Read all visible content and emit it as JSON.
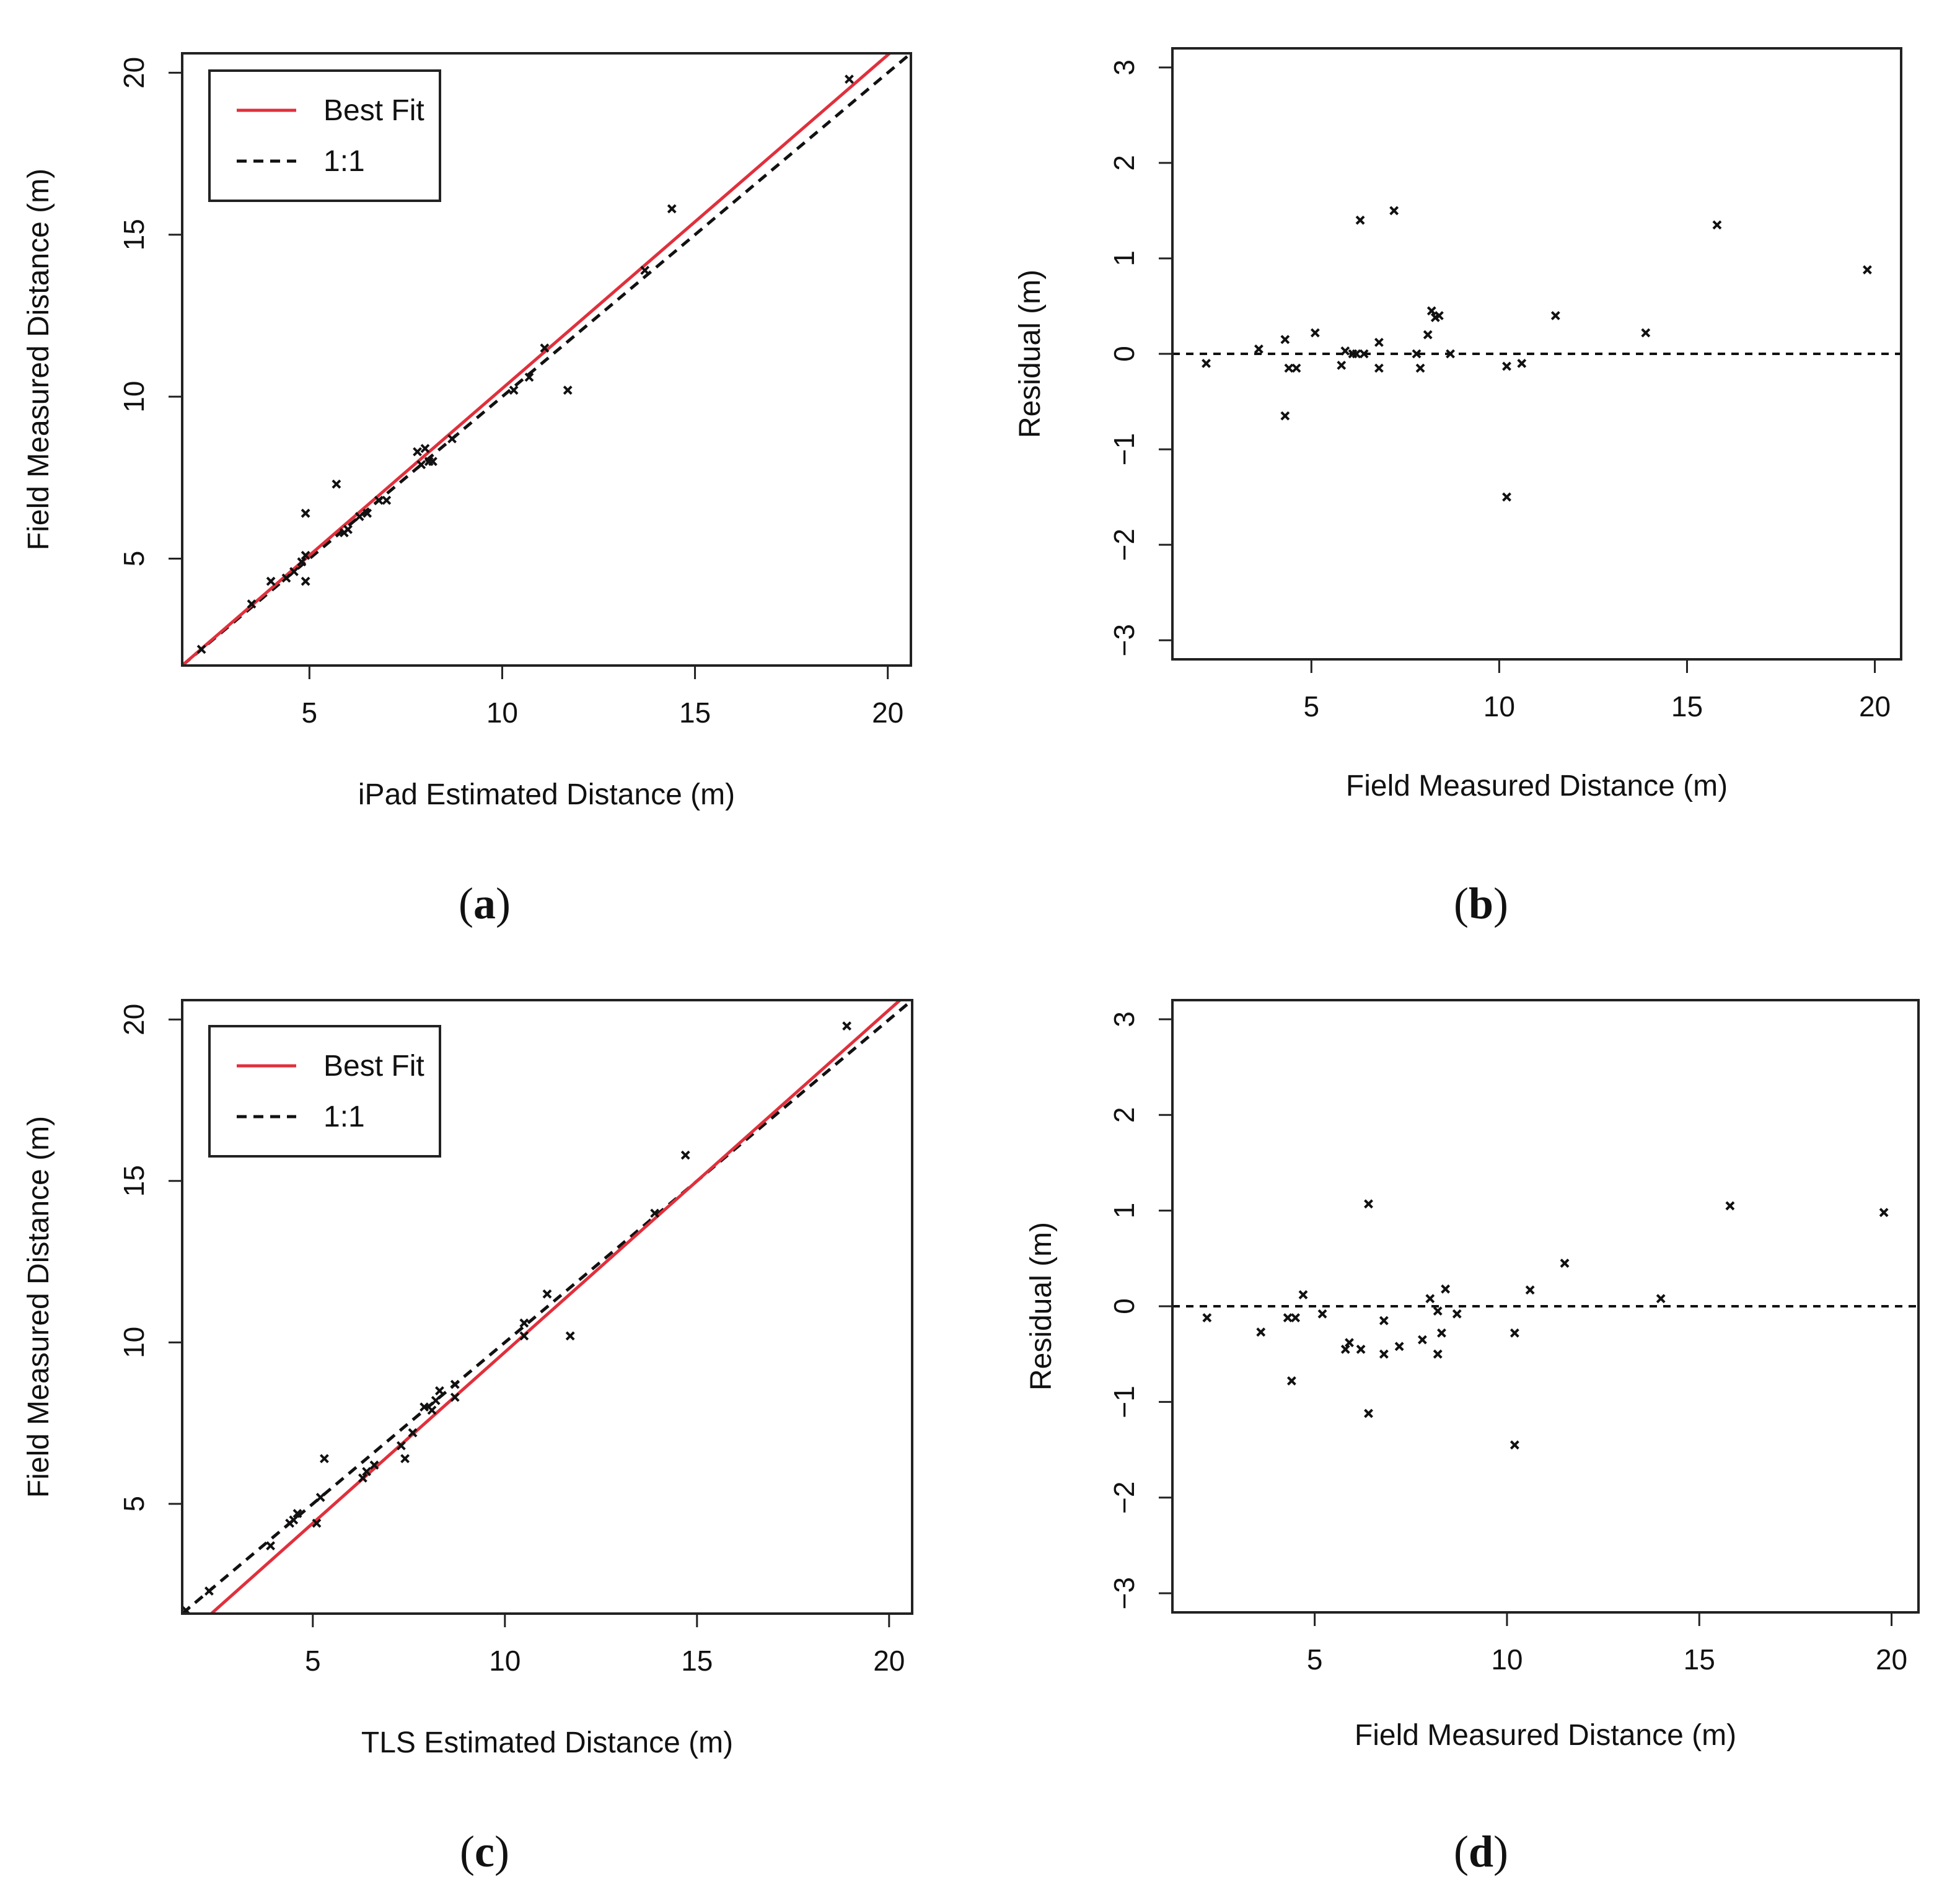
{
  "chart_data": [
    {
      "type": "scatter",
      "panel_label": "(a)",
      "label_letter": "a",
      "xlabel": "iPad Estimated Distance (m)",
      "ylabel": "Field Measured Distance (m)",
      "xlim": [
        1.7,
        20.6
      ],
      "ylim": [
        1.7,
        20.6
      ],
      "xticks": [
        5,
        10,
        15,
        20
      ],
      "yticks": [
        5,
        10,
        15,
        20
      ],
      "legend": {
        "position": "top-left",
        "entries": [
          {
            "label": "Best Fit",
            "style": "solid",
            "color": "#e0303c"
          },
          {
            "label": "1:1",
            "style": "dashed",
            "color": "#111111"
          }
        ]
      },
      "best_fit": {
        "slope": 1.03,
        "intercept": -0.05
      },
      "reference_line": {
        "slope": 1,
        "intercept": 0
      },
      "points": [
        [
          2.2,
          2.2
        ],
        [
          3.5,
          3.6
        ],
        [
          4.0,
          4.3
        ],
        [
          4.4,
          4.4
        ],
        [
          4.6,
          4.6
        ],
        [
          4.9,
          4.3
        ],
        [
          4.8,
          4.9
        ],
        [
          4.9,
          5.1
        ],
        [
          4.9,
          6.4
        ],
        [
          5.7,
          7.3
        ],
        [
          5.9,
          5.8
        ],
        [
          6.0,
          5.9
        ],
        [
          6.3,
          6.3
        ],
        [
          6.5,
          6.4
        ],
        [
          6.8,
          6.8
        ],
        [
          7.0,
          6.8
        ],
        [
          7.8,
          8.3
        ],
        [
          7.9,
          7.9
        ],
        [
          8.0,
          8.4
        ],
        [
          8.1,
          8.0
        ],
        [
          8.2,
          8.0
        ],
        [
          8.7,
          8.7
        ],
        [
          10.3,
          10.2
        ],
        [
          10.7,
          10.6
        ],
        [
          11.1,
          11.5
        ],
        [
          11.7,
          10.2
        ],
        [
          13.7,
          13.9
        ],
        [
          14.4,
          15.8
        ],
        [
          19.0,
          19.8
        ]
      ]
    },
    {
      "type": "scatter",
      "panel_label": "(b)",
      "label_letter": "b",
      "xlabel": "Field Measured Distance (m)",
      "ylabel": "Residual (m)",
      "xlim": [
        1.3,
        20.7
      ],
      "ylim": [
        -3.2,
        3.2
      ],
      "xticks": [
        5,
        10,
        15,
        20
      ],
      "yticks": [
        -3,
        -2,
        -1,
        0,
        1,
        2,
        3
      ],
      "zero_line": 0,
      "points": [
        [
          2.2,
          -0.1
        ],
        [
          3.6,
          0.05
        ],
        [
          4.3,
          0.15
        ],
        [
          4.3,
          -0.65
        ],
        [
          4.4,
          -0.15
        ],
        [
          4.6,
          -0.15
        ],
        [
          5.1,
          0.22
        ],
        [
          5.8,
          -0.12
        ],
        [
          5.9,
          0.03
        ],
        [
          6.1,
          0.0
        ],
        [
          6.2,
          0.0
        ],
        [
          6.3,
          1.4
        ],
        [
          6.4,
          0.0
        ],
        [
          6.8,
          0.12
        ],
        [
          6.8,
          -0.15
        ],
        [
          7.2,
          1.5
        ],
        [
          7.8,
          0.0
        ],
        [
          7.9,
          -0.15
        ],
        [
          8.1,
          0.2
        ],
        [
          8.2,
          0.45
        ],
        [
          8.3,
          0.38
        ],
        [
          8.4,
          0.4
        ],
        [
          8.7,
          0.0
        ],
        [
          10.2,
          -0.13
        ],
        [
          10.2,
          -1.5
        ],
        [
          10.6,
          -0.1
        ],
        [
          11.5,
          0.4
        ],
        [
          13.9,
          0.22
        ],
        [
          15.8,
          1.35
        ],
        [
          19.8,
          0.88
        ]
      ]
    },
    {
      "type": "scatter",
      "panel_label": "(c)",
      "label_letter": "c",
      "xlabel": "TLS Estimated Distance (m)",
      "ylabel": "Field Measured Distance (m)",
      "xlim": [
        1.6,
        20.6
      ],
      "ylim": [
        1.6,
        20.6
      ],
      "xticks": [
        5,
        10,
        15,
        20
      ],
      "yticks": [
        5,
        10,
        15,
        20
      ],
      "legend": {
        "position": "top-left",
        "entries": [
          {
            "label": "Best Fit",
            "style": "solid",
            "color": "#e0303c"
          },
          {
            "label": "1:1",
            "style": "dashed",
            "color": "#111111"
          }
        ]
      },
      "best_fit": {
        "slope": 1.06,
        "intercept": -0.9
      },
      "reference_line": {
        "slope": 1,
        "intercept": 0
      },
      "points": [
        [
          1.7,
          1.7
        ],
        [
          2.3,
          2.3
        ],
        [
          3.9,
          3.7
        ],
        [
          4.4,
          4.4
        ],
        [
          4.5,
          4.5
        ],
        [
          4.6,
          4.7
        ],
        [
          5.1,
          4.4
        ],
        [
          5.2,
          5.2
        ],
        [
          5.3,
          6.4
        ],
        [
          6.3,
          5.8
        ],
        [
          6.4,
          6.0
        ],
        [
          6.6,
          6.2
        ],
        [
          7.3,
          6.8
        ],
        [
          7.4,
          6.4
        ],
        [
          7.6,
          7.2
        ],
        [
          7.9,
          8.0
        ],
        [
          8.1,
          7.9
        ],
        [
          8.2,
          8.2
        ],
        [
          8.3,
          8.5
        ],
        [
          8.7,
          8.3
        ],
        [
          8.7,
          8.7
        ],
        [
          10.5,
          10.2
        ],
        [
          10.5,
          10.6
        ],
        [
          11.1,
          11.5
        ],
        [
          11.7,
          10.2
        ],
        [
          13.9,
          14.0
        ],
        [
          14.7,
          15.8
        ],
        [
          18.9,
          19.8
        ]
      ]
    },
    {
      "type": "scatter",
      "panel_label": "(d)",
      "label_letter": "d",
      "xlabel": "Field Measured Distance (m)",
      "ylabel": "Residual (m)",
      "xlim": [
        1.3,
        20.7
      ],
      "ylim": [
        -3.2,
        3.2
      ],
      "xticks": [
        5,
        10,
        15,
        20
      ],
      "yticks": [
        -3,
        -2,
        -1,
        0,
        1,
        2,
        3
      ],
      "zero_line": 0,
      "points": [
        [
          2.2,
          -0.12
        ],
        [
          3.6,
          -0.27
        ],
        [
          4.3,
          -0.12
        ],
        [
          4.4,
          -0.78
        ],
        [
          4.5,
          -0.12
        ],
        [
          4.7,
          0.12
        ],
        [
          5.2,
          -0.08
        ],
        [
          5.8,
          -0.45
        ],
        [
          5.9,
          -0.38
        ],
        [
          6.2,
          -0.45
        ],
        [
          6.4,
          1.07
        ],
        [
          6.4,
          -1.12
        ],
        [
          6.8,
          -0.15
        ],
        [
          6.8,
          -0.5
        ],
        [
          7.2,
          -0.42
        ],
        [
          7.8,
          -0.35
        ],
        [
          8.0,
          0.08
        ],
        [
          8.2,
          -0.05
        ],
        [
          8.2,
          -0.5
        ],
        [
          8.3,
          -0.28
        ],
        [
          8.4,
          0.18
        ],
        [
          8.7,
          -0.08
        ],
        [
          10.2,
          -0.28
        ],
        [
          10.2,
          -1.45
        ],
        [
          10.6,
          0.17
        ],
        [
          11.5,
          0.45
        ],
        [
          14.0,
          0.08
        ],
        [
          15.8,
          1.05
        ],
        [
          19.8,
          0.98
        ]
      ]
    }
  ]
}
